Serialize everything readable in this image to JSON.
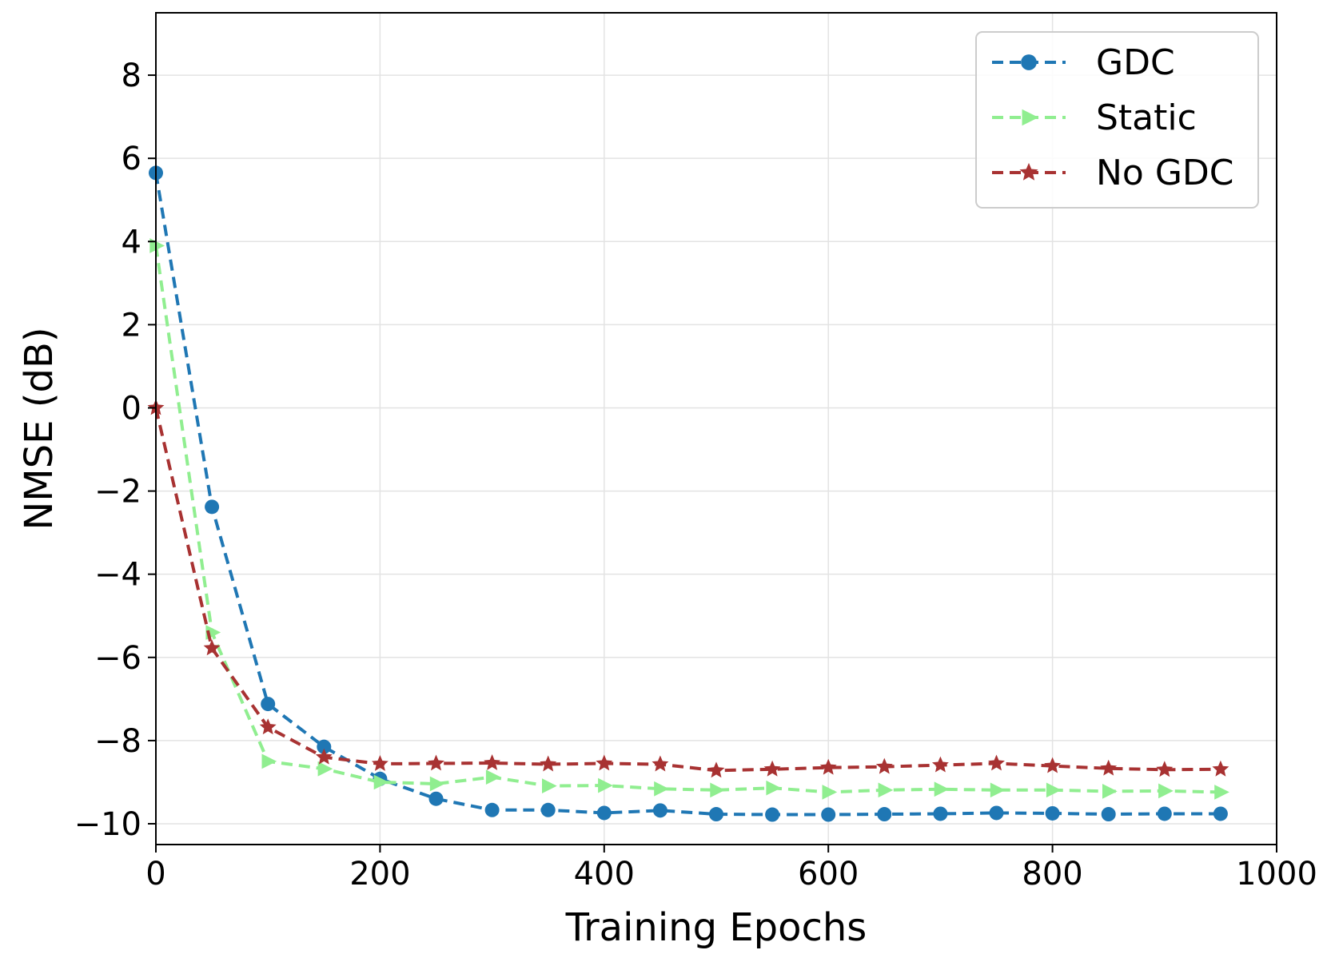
{
  "chart_data": {
    "type": "line",
    "title": "",
    "xlabel": "Training Epochs",
    "ylabel": "NMSE (dB)",
    "xlim": [
      0,
      1000
    ],
    "ylim": [
      -10.5,
      9.5
    ],
    "xticks": [
      0,
      200,
      400,
      600,
      800,
      1000
    ],
    "xtick_labels": [
      "0",
      "200",
      "400",
      "600",
      "800",
      "1000"
    ],
    "yticks": [
      -10,
      -8,
      -6,
      -4,
      -2,
      0,
      2,
      4,
      6,
      8
    ],
    "ytick_labels": [
      "−10",
      "−8",
      "−6",
      "−4",
      "−2",
      "0",
      "2",
      "4",
      "6",
      "8"
    ],
    "grid": true,
    "legend_position": "top-right",
    "x": [
      0,
      50,
      100,
      150,
      200,
      250,
      300,
      350,
      400,
      450,
      500,
      550,
      600,
      650,
      700,
      750,
      800,
      850,
      900,
      950
    ],
    "series": [
      {
        "name": "GDC",
        "color": "#1f77b4",
        "marker": "circle",
        "values": [
          5.65,
          -2.38,
          -7.12,
          -8.15,
          -8.92,
          -9.4,
          -9.67,
          -9.67,
          -9.74,
          -9.68,
          -9.77,
          -9.78,
          -9.78,
          -9.77,
          -9.76,
          -9.74,
          -9.75,
          -9.77,
          -9.76,
          -9.76
        ]
      },
      {
        "name": "Static",
        "color": "#90ee90",
        "marker": "triangle-right",
        "values": [
          3.9,
          -5.4,
          -8.5,
          -8.68,
          -9.0,
          -9.04,
          -8.88,
          -9.09,
          -9.08,
          -9.16,
          -9.19,
          -9.14,
          -9.24,
          -9.19,
          -9.17,
          -9.19,
          -9.19,
          -9.22,
          -9.21,
          -9.24
        ]
      },
      {
        "name": "No GDC",
        "color": "#a83232",
        "marker": "star",
        "values": [
          0.0,
          -5.78,
          -7.68,
          -8.4,
          -8.56,
          -8.55,
          -8.54,
          -8.57,
          -8.55,
          -8.57,
          -8.72,
          -8.69,
          -8.65,
          -8.63,
          -8.59,
          -8.55,
          -8.61,
          -8.67,
          -8.7,
          -8.69
        ]
      }
    ]
  }
}
